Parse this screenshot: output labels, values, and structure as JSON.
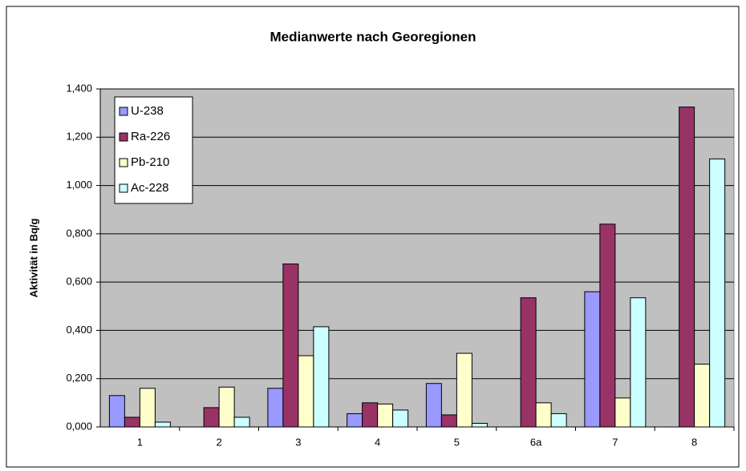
{
  "chart_data": {
    "type": "bar",
    "title": "Medianwerte nach Georegionen",
    "y_label": "Aktivität in Bq/g",
    "categories": [
      "1",
      "2",
      "3",
      "4",
      "5",
      "6a",
      "7",
      "8"
    ],
    "series": [
      {
        "name": "U-238",
        "color": "#9999ff",
        "values": [
          0.13,
          null,
          0.16,
          0.055,
          0.18,
          null,
          0.56,
          null
        ]
      },
      {
        "name": "Ra-226",
        "color": "#993366",
        "values": [
          0.04,
          0.08,
          0.675,
          0.1,
          0.05,
          0.535,
          0.84,
          1.325
        ]
      },
      {
        "name": "Pb-210",
        "color": "#ffffcc",
        "values": [
          0.16,
          0.165,
          0.295,
          0.095,
          0.305,
          0.1,
          0.12,
          0.26
        ]
      },
      {
        "name": "Ac-228",
        "color": "#ccffff",
        "values": [
          0.02,
          0.04,
          0.415,
          0.07,
          0.015,
          0.055,
          0.535,
          1.11
        ]
      }
    ],
    "ylim": [
      0,
      1.4
    ],
    "yticks": [
      {
        "value": 0,
        "label": "0,000"
      },
      {
        "value": 0.2,
        "label": "0,200"
      },
      {
        "value": 0.4,
        "label": "0,400"
      },
      {
        "value": 0.6,
        "label": "0,600"
      },
      {
        "value": 0.8,
        "label": "0,800"
      },
      {
        "value": 1.0,
        "label": "1,000"
      },
      {
        "value": 1.2,
        "label": "1,200"
      },
      {
        "value": 1.4,
        "label": "1,400"
      }
    ],
    "grid": true,
    "legend": "top-left",
    "plot_background": "#c0c0c0"
  }
}
